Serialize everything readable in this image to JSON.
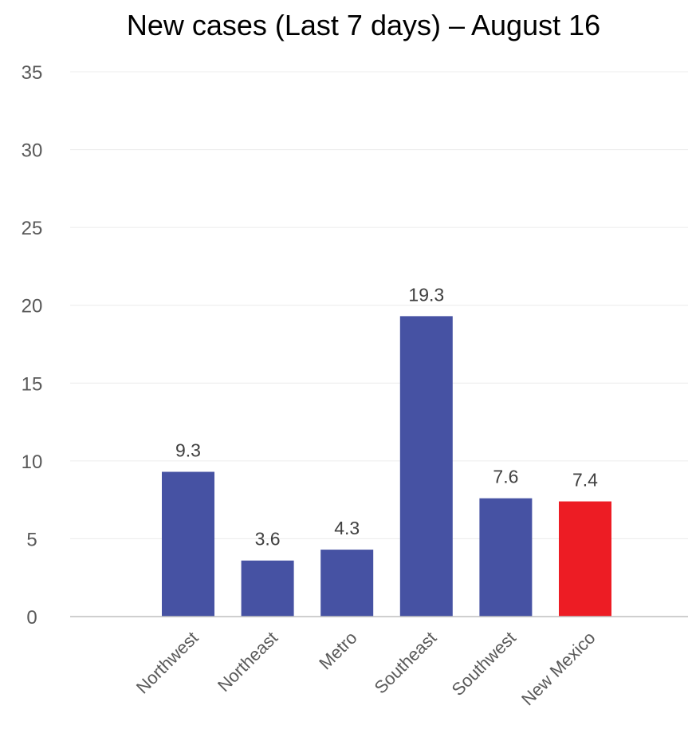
{
  "chart_data": {
    "type": "bar",
    "title": "New cases (Last 7 days) – August 16",
    "xlabel": "",
    "ylabel": "",
    "categories": [
      "Northwest",
      "Northeast",
      "Metro",
      "Southeast",
      "Southwest",
      "New Mexico"
    ],
    "values": [
      9.3,
      3.6,
      4.3,
      19.3,
      7.6,
      7.4
    ],
    "data_labels": [
      "9.3",
      "3.6",
      "4.3",
      "19.3",
      "7.6",
      "7.4"
    ],
    "colors": [
      "#4652a3",
      "#4652a3",
      "#4652a3",
      "#4652a3",
      "#4652a3",
      "#ed1c24"
    ],
    "ylim": [
      0,
      35
    ],
    "yticks": [
      0,
      5,
      10,
      15,
      20,
      25,
      30,
      35
    ],
    "ytick_labels": [
      "0",
      "5",
      "10",
      "15",
      "20",
      "25",
      "30",
      "35"
    ],
    "grid": true,
    "legend": "none"
  }
}
